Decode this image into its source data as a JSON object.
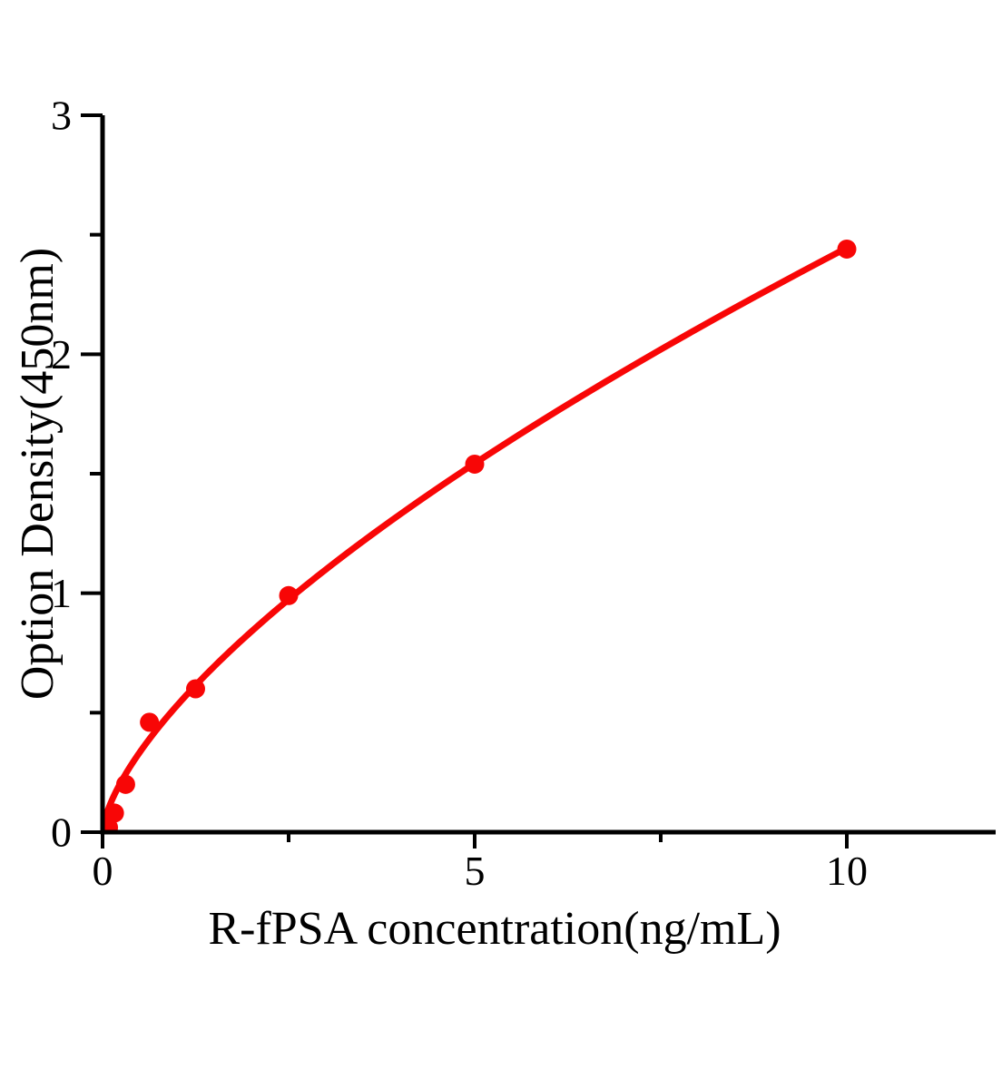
{
  "chart_data": {
    "type": "scatter",
    "title": "",
    "xlabel": "R-fPSA concentration(ng/mL)",
    "ylabel": "Option Density(450nm)",
    "x": [
      0.08,
      0.16,
      0.31,
      0.63,
      1.25,
      2.5,
      5,
      10
    ],
    "y": [
      0.02,
      0.08,
      0.2,
      0.46,
      0.6,
      0.99,
      1.54,
      2.44
    ],
    "fit_curve": {
      "type": "power",
      "a": 0.53,
      "b": 0.664
    },
    "xlim": [
      0,
      12
    ],
    "ylim": [
      0,
      3
    ],
    "x_major_ticks": [
      0,
      5,
      10
    ],
    "x_tick_labels": [
      "0",
      "5",
      "10"
    ],
    "x_minor_ticks": [
      2.5,
      7.5
    ],
    "y_major_ticks": [
      0,
      1,
      2,
      3
    ],
    "y_tick_labels": [
      "0",
      "1",
      "2",
      "3"
    ],
    "y_minor_ticks": [
      0.5,
      1.5,
      2.5
    ],
    "grid": false,
    "legend": "none",
    "marker": "circle",
    "marker_color": "#f80606",
    "line_color": "#f80606",
    "axis_color": "#000000",
    "background_color": "#ffffff"
  }
}
